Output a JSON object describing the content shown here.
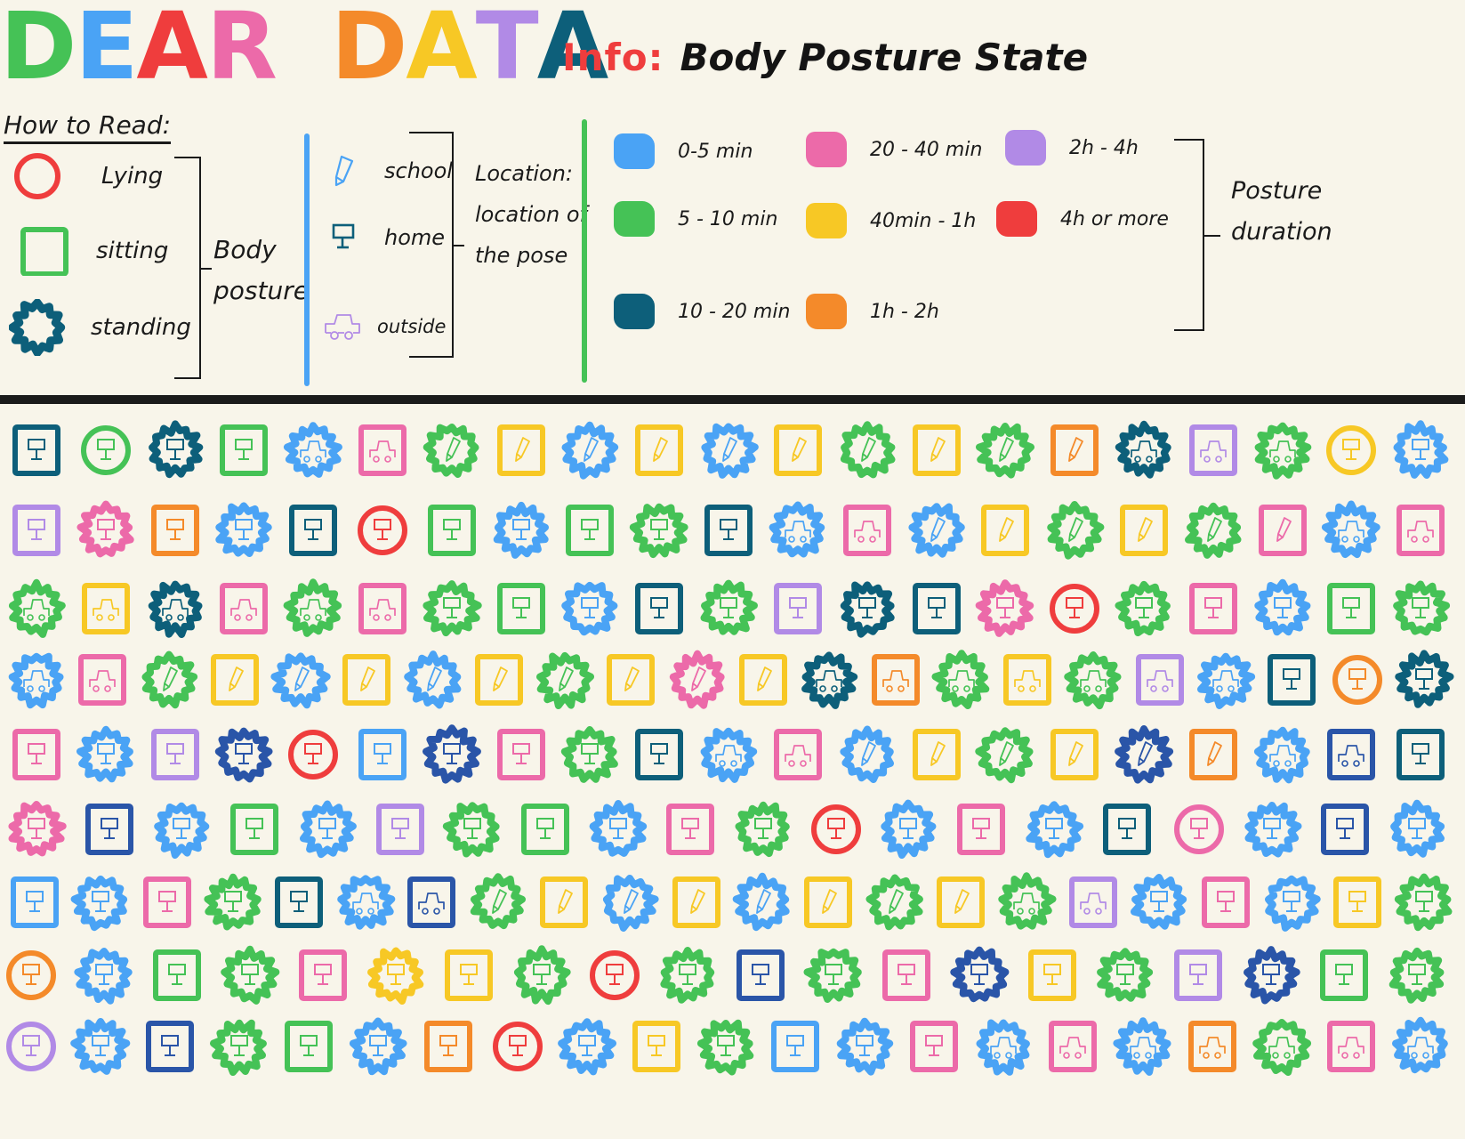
{
  "title": {
    "letters": [
      {
        "ch": "D",
        "color": "#45c256"
      },
      {
        "ch": "E",
        "color": "#4aa3f5"
      },
      {
        "ch": "A",
        "color": "#ef3d3d"
      },
      {
        "ch": "R",
        "color": "#ec6aa9"
      },
      {
        "ch": " ",
        "color": ""
      },
      {
        "ch": "D",
        "color": "#f48a2a"
      },
      {
        "ch": "A",
        "color": "#f7c825"
      },
      {
        "ch": "T",
        "color": "#b18ae6"
      },
      {
        "ch": "A",
        "color": "#0d5f7a"
      }
    ],
    "text": "DEAR DATA"
  },
  "info": {
    "label": "Info:",
    "value": "Body Posture State"
  },
  "how_to_read": "How to Read:",
  "legend": {
    "posture": {
      "group_label": "Body posture",
      "items": [
        {
          "shape": "circle",
          "label": "Lying",
          "color": "#ef3d3d"
        },
        {
          "shape": "square",
          "label": "sitting",
          "color": "#45c256"
        },
        {
          "shape": "star",
          "label": "standing",
          "color": "#0d5f7a"
        }
      ]
    },
    "location": {
      "group_label_line1": "Location:",
      "group_label_line2": "location of",
      "group_label_line3": "the pose",
      "items": [
        {
          "icon": "pencil",
          "label": "school",
          "color": "#4aa3f5"
        },
        {
          "icon": "monitor",
          "label": "home",
          "color": "#0d5f7a"
        },
        {
          "icon": "car",
          "label": "outside",
          "color": "#b18ae6"
        }
      ]
    },
    "duration": {
      "group_label_line1": "Posture",
      "group_label_line2": "duration",
      "items": [
        {
          "label": "0-5 min",
          "color": "#4aa3f5"
        },
        {
          "label": "5 - 10 min",
          "color": "#45c256"
        },
        {
          "label": "10 - 20 min",
          "color": "#0d5f7a"
        },
        {
          "label": "20 - 40 min",
          "color": "#ec6aa9"
        },
        {
          "label": "40min - 1h",
          "color": "#f7c825"
        },
        {
          "label": "1h - 2h",
          "color": "#f48a2a"
        },
        {
          "label": "2h - 4h",
          "color": "#b18ae6"
        },
        {
          "label": "4h or more",
          "color": "#ef3d3d"
        }
      ]
    }
  },
  "dividers": {
    "blue": "#4aa3f5",
    "green": "#45c256"
  },
  "colors": {
    "b": "#4aa3f5",
    "g": "#45c256",
    "t": "#0d5f7a",
    "p": "#ec6aa9",
    "y": "#f7c825",
    "or": "#f48a2a",
    "v": "#b18ae6",
    "r": "#ef3d3d",
    "n": "#2a55a8"
  },
  "chart_data": {
    "type": "table",
    "title": "Dear Data — Body Posture State",
    "encoding": {
      "shape": {
        "ci": "lying",
        "sq": "sitting",
        "st": "standing"
      },
      "icon": {
        "s": "school",
        "h": "home",
        "o": "outside"
      },
      "color": {
        "b": "0-5 min",
        "g": "5-10 min",
        "t": "10-20 min",
        "p": "20-40 min",
        "y": "40min-1h",
        "or": "1h-2h",
        "v": "2h-4h",
        "r": "4h or more",
        "n": "dark blue (unlabeled)"
      }
    },
    "rows": [
      [
        [
          "sq",
          "h",
          "t"
        ],
        [
          "ci",
          "h",
          "g"
        ],
        [
          "st",
          "h",
          "t"
        ],
        [
          "sq",
          "h",
          "g"
        ],
        [
          "st",
          "o",
          "b"
        ],
        [
          "sq",
          "o",
          "p"
        ],
        [
          "st",
          "s",
          "g"
        ],
        [
          "sq",
          "s",
          "y"
        ],
        [
          "st",
          "s",
          "b"
        ],
        [
          "sq",
          "s",
          "y"
        ],
        [
          "st",
          "s",
          "b"
        ],
        [
          "sq",
          "s",
          "y"
        ],
        [
          "st",
          "s",
          "g"
        ],
        [
          "sq",
          "s",
          "y"
        ],
        [
          "st",
          "s",
          "g"
        ],
        [
          "sq",
          "s",
          "or"
        ],
        [
          "st",
          "o",
          "t"
        ],
        [
          "sq",
          "o",
          "v"
        ],
        [
          "st",
          "o",
          "g"
        ],
        [
          "ci",
          "h",
          "y"
        ],
        [
          "st",
          "h",
          "b"
        ]
      ],
      [
        [
          "sq",
          "h",
          "v"
        ],
        [
          "st",
          "h",
          "p"
        ],
        [
          "sq",
          "h",
          "or"
        ],
        [
          "st",
          "h",
          "b"
        ],
        [
          "sq",
          "h",
          "t"
        ],
        [
          "ci",
          "h",
          "r"
        ],
        [
          "sq",
          "h",
          "g"
        ],
        [
          "st",
          "h",
          "b"
        ],
        [
          "sq",
          "h",
          "g"
        ],
        [
          "st",
          "h",
          "g"
        ],
        [
          "sq",
          "h",
          "t"
        ],
        [
          "st",
          "o",
          "b"
        ],
        [
          "sq",
          "o",
          "p"
        ],
        [
          "st",
          "s",
          "b"
        ],
        [
          "sq",
          "s",
          "y"
        ],
        [
          "st",
          "s",
          "g"
        ],
        [
          "sq",
          "s",
          "y"
        ],
        [
          "st",
          "s",
          "g"
        ],
        [
          "sq",
          "s",
          "p"
        ],
        [
          "st",
          "o",
          "b"
        ],
        [
          "sq",
          "o",
          "p"
        ]
      ],
      [
        [
          "st",
          "o",
          "g"
        ],
        [
          "sq",
          "o",
          "y"
        ],
        [
          "st",
          "o",
          "t"
        ],
        [
          "sq",
          "o",
          "p"
        ],
        [
          "st",
          "o",
          "g"
        ],
        [
          "sq",
          "o",
          "p"
        ],
        [
          "st",
          "h",
          "g"
        ],
        [
          "sq",
          "h",
          "g"
        ],
        [
          "st",
          "h",
          "b"
        ],
        [
          "sq",
          "h",
          "t"
        ],
        [
          "st",
          "h",
          "g"
        ],
        [
          "sq",
          "h",
          "v"
        ],
        [
          "st",
          "h",
          "t"
        ],
        [
          "sq",
          "h",
          "t"
        ],
        [
          "st",
          "h",
          "p"
        ],
        [
          "ci",
          "h",
          "r"
        ],
        [
          "st",
          "h",
          "g"
        ],
        [
          "sq",
          "h",
          "p"
        ],
        [
          "st",
          "h",
          "b"
        ],
        [
          "sq",
          "h",
          "g"
        ],
        [
          "st",
          "h",
          "g"
        ]
      ],
      [
        [
          "st",
          "o",
          "b"
        ],
        [
          "sq",
          "o",
          "p"
        ],
        [
          "st",
          "s",
          "g"
        ],
        [
          "sq",
          "s",
          "y"
        ],
        [
          "st",
          "s",
          "b"
        ],
        [
          "sq",
          "s",
          "y"
        ],
        [
          "st",
          "s",
          "b"
        ],
        [
          "sq",
          "s",
          "y"
        ],
        [
          "st",
          "s",
          "g"
        ],
        [
          "sq",
          "s",
          "y"
        ],
        [
          "st",
          "s",
          "p"
        ],
        [
          "sq",
          "s",
          "y"
        ],
        [
          "st",
          "o",
          "t"
        ],
        [
          "sq",
          "o",
          "or"
        ],
        [
          "st",
          "o",
          "g"
        ],
        [
          "sq",
          "o",
          "y"
        ],
        [
          "st",
          "o",
          "g"
        ],
        [
          "sq",
          "o",
          "v"
        ],
        [
          "st",
          "o",
          "b"
        ],
        [
          "sq",
          "h",
          "t"
        ],
        [
          "ci",
          "h",
          "or"
        ],
        [
          "st",
          "h",
          "t"
        ]
      ],
      [
        [
          "sq",
          "h",
          "p"
        ],
        [
          "st",
          "h",
          "b"
        ],
        [
          "sq",
          "h",
          "v"
        ],
        [
          "st",
          "h",
          "n"
        ],
        [
          "ci",
          "h",
          "r"
        ],
        [
          "sq",
          "h",
          "b"
        ],
        [
          "st",
          "h",
          "n"
        ],
        [
          "sq",
          "h",
          "p"
        ],
        [
          "st",
          "h",
          "g"
        ],
        [
          "sq",
          "h",
          "t"
        ],
        [
          "st",
          "o",
          "b"
        ],
        [
          "sq",
          "o",
          "p"
        ],
        [
          "st",
          "s",
          "b"
        ],
        [
          "sq",
          "s",
          "y"
        ],
        [
          "st",
          "s",
          "g"
        ],
        [
          "sq",
          "s",
          "y"
        ],
        [
          "st",
          "s",
          "n"
        ],
        [
          "sq",
          "s",
          "or"
        ],
        [
          "st",
          "o",
          "b"
        ],
        [
          "sq",
          "o",
          "n"
        ],
        [
          "sq",
          "h",
          "t"
        ]
      ],
      [
        [
          "st",
          "h",
          "p"
        ],
        [
          "sq",
          "h",
          "n"
        ],
        [
          "st",
          "h",
          "b"
        ],
        [
          "sq",
          "h",
          "g"
        ],
        [
          "st",
          "h",
          "b"
        ],
        [
          "sq",
          "h",
          "v"
        ],
        [
          "st",
          "h",
          "g"
        ],
        [
          "sq",
          "h",
          "g"
        ],
        [
          "st",
          "h",
          "b"
        ],
        [
          "sq",
          "h",
          "p"
        ],
        [
          "st",
          "h",
          "g"
        ],
        [
          "ci",
          "h",
          "r"
        ],
        [
          "st",
          "h",
          "b"
        ],
        [
          "sq",
          "h",
          "p"
        ],
        [
          "st",
          "h",
          "b"
        ],
        [
          "sq",
          "h",
          "t"
        ],
        [
          "ci",
          "h",
          "p"
        ],
        [
          "st",
          "h",
          "b"
        ],
        [
          "sq",
          "h",
          "n"
        ],
        [
          "st",
          "h",
          "b"
        ]
      ],
      [
        [
          "sq",
          "h",
          "b"
        ],
        [
          "st",
          "h",
          "b"
        ],
        [
          "sq",
          "h",
          "p"
        ],
        [
          "st",
          "h",
          "g"
        ],
        [
          "sq",
          "h",
          "t"
        ],
        [
          "st",
          "o",
          "b"
        ],
        [
          "sq",
          "o",
          "n"
        ],
        [
          "st",
          "s",
          "g"
        ],
        [
          "sq",
          "s",
          "y"
        ],
        [
          "st",
          "s",
          "b"
        ],
        [
          "sq",
          "s",
          "y"
        ],
        [
          "st",
          "s",
          "b"
        ],
        [
          "sq",
          "s",
          "y"
        ],
        [
          "st",
          "s",
          "g"
        ],
        [
          "sq",
          "s",
          "y"
        ],
        [
          "st",
          "o",
          "g"
        ],
        [
          "sq",
          "o",
          "v"
        ],
        [
          "st",
          "h",
          "b"
        ],
        [
          "sq",
          "h",
          "p"
        ],
        [
          "st",
          "h",
          "b"
        ],
        [
          "sq",
          "h",
          "y"
        ],
        [
          "st",
          "h",
          "g"
        ]
      ],
      [
        [
          "ci",
          "h",
          "or"
        ],
        [
          "st",
          "h",
          "b"
        ],
        [
          "sq",
          "h",
          "g"
        ],
        [
          "st",
          "h",
          "g"
        ],
        [
          "sq",
          "h",
          "p"
        ],
        [
          "st",
          "h",
          "y"
        ],
        [
          "sq",
          "h",
          "y"
        ],
        [
          "st",
          "h",
          "g"
        ],
        [
          "ci",
          "h",
          "r"
        ],
        [
          "st",
          "h",
          "g"
        ],
        [
          "sq",
          "h",
          "n"
        ],
        [
          "st",
          "h",
          "g"
        ],
        [
          "sq",
          "h",
          "p"
        ],
        [
          "st",
          "h",
          "n"
        ],
        [
          "sq",
          "h",
          "y"
        ],
        [
          "st",
          "h",
          "g"
        ],
        [
          "sq",
          "h",
          "v"
        ],
        [
          "st",
          "h",
          "n"
        ],
        [
          "sq",
          "h",
          "g"
        ],
        [
          "st",
          "h",
          "g"
        ]
      ],
      [
        [
          "ci",
          "h",
          "v"
        ],
        [
          "st",
          "h",
          "b"
        ],
        [
          "sq",
          "h",
          "n"
        ],
        [
          "st",
          "h",
          "g"
        ],
        [
          "sq",
          "h",
          "g"
        ],
        [
          "st",
          "h",
          "b"
        ],
        [
          "sq",
          "h",
          "or"
        ],
        [
          "ci",
          "h",
          "r"
        ],
        [
          "st",
          "h",
          "b"
        ],
        [
          "sq",
          "h",
          "y"
        ],
        [
          "st",
          "h",
          "g"
        ],
        [
          "sq",
          "h",
          "b"
        ],
        [
          "st",
          "h",
          "b"
        ],
        [
          "sq",
          "h",
          "p"
        ],
        [
          "st",
          "o",
          "b"
        ],
        [
          "sq",
          "o",
          "p"
        ],
        [
          "st",
          "o",
          "b"
        ],
        [
          "sq",
          "o",
          "or"
        ],
        [
          "st",
          "o",
          "g"
        ],
        [
          "sq",
          "o",
          "p"
        ],
        [
          "st",
          "o",
          "b"
        ]
      ]
    ]
  }
}
